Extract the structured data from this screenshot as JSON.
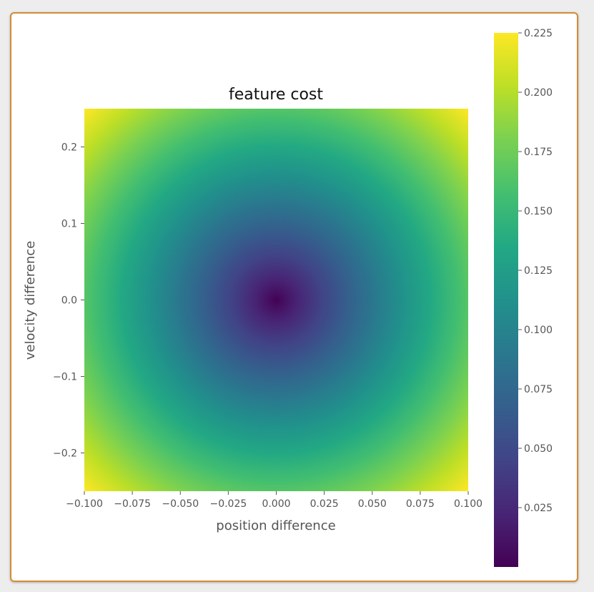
{
  "chart_data": {
    "type": "heatmap",
    "title": "feature cost",
    "xlabel": "position difference",
    "ylabel": "velocity difference",
    "xlim": [
      -0.1,
      0.1
    ],
    "ylim": [
      -0.25,
      0.25
    ],
    "x_ticks": [
      -0.1,
      -0.075,
      -0.05,
      -0.025,
      0.0,
      0.025,
      0.05,
      0.075,
      0.1
    ],
    "x_tick_labels": [
      "−0.100",
      "−0.075",
      "−0.050",
      "−0.025",
      "0.000",
      "0.025",
      "0.050",
      "0.075",
      "0.100"
    ],
    "y_ticks": [
      0.2,
      0.1,
      0.0,
      -0.1,
      -0.2
    ],
    "y_tick_labels": [
      "0.2",
      "0.1",
      "0.0",
      "−0.1",
      "−0.2"
    ],
    "colormap": "viridis",
    "colorbar": {
      "vmin": 0.0,
      "vmax": 0.225,
      "ticks": [
        0.225,
        0.2,
        0.175,
        0.15,
        0.125,
        0.1,
        0.075,
        0.05,
        0.025
      ],
      "tick_labels": [
        "0.225",
        "0.200",
        "0.175",
        "0.150",
        "0.125",
        "0.100",
        "0.075",
        "0.050",
        "0.025"
      ]
    },
    "corner_values": {
      "top_left": 0.225,
      "top_right": 0.225,
      "bottom_left": 0.225,
      "bottom_right": 0.225,
      "center": 0.0
    },
    "grid": false
  },
  "colors": {
    "frame_border": "#d38b37",
    "background": "#ffffff",
    "page_background": "#ededed"
  }
}
